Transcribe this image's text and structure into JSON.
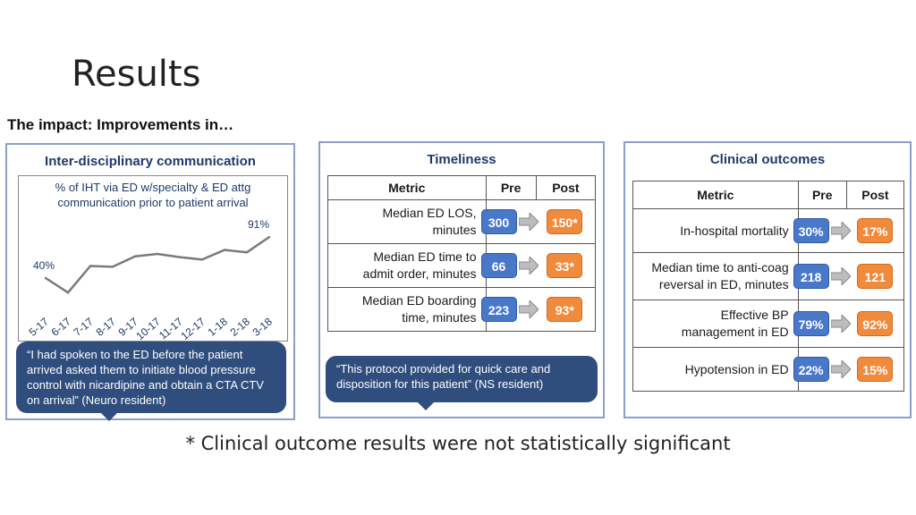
{
  "title": "Results",
  "subtitle": "The impact: Improvements in…",
  "communication": {
    "title": "Inter-disciplinary communication",
    "caption_line1": "% of IHT via ED w/specialty & ED attg",
    "caption_line2": "communication prior to patient arrival",
    "quote": "“I had spoken to the ED before the patient arrived asked them to initiate blood pressure control with nicardipine and obtain a CTA CTV on arrival” (Neuro resident)"
  },
  "chart_data": {
    "type": "line",
    "categories": [
      "5-17",
      "6-17",
      "7-17",
      "8-17",
      "9-17",
      "10-17",
      "11-17",
      "12-17",
      "1-18",
      "2-18",
      "3-18"
    ],
    "values": [
      40,
      22,
      55,
      54,
      67,
      70,
      66,
      63,
      75,
      72,
      91
    ],
    "data_labels": [
      {
        "index": 0,
        "text": "40%"
      },
      {
        "index": 10,
        "text": "91%"
      }
    ],
    "title": "% of IHT via ED w/specialty & ED attg communication prior to patient arrival",
    "xlabel": "",
    "ylabel": "",
    "ylim": [
      0,
      100
    ],
    "grid": false,
    "line_color": "#7a7a7a"
  },
  "timeliness": {
    "title": "Timeliness",
    "headers": {
      "metric": "Metric",
      "pre": "Pre",
      "post": "Post"
    },
    "rows": [
      {
        "metric_line1": "Median ED LOS,",
        "metric_line2": "minutes",
        "pre": "300",
        "post": "150*"
      },
      {
        "metric_line1": "Median ED time to",
        "metric_line2": "admit order, minutes",
        "pre": "66",
        "post": "33*"
      },
      {
        "metric_line1": "Median ED boarding",
        "metric_line2": "time, minutes",
        "pre": "223",
        "post": "93*"
      }
    ],
    "quote": "“This protocol provided for quick care and disposition for this patient” (NS resident)"
  },
  "clinical": {
    "title": "Clinical outcomes",
    "headers": {
      "metric": "Metric",
      "pre": "Pre",
      "post": "Post"
    },
    "rows": [
      {
        "metric_line1": "In-hospital mortality",
        "metric_line2": "",
        "pre": "30%",
        "post": "17%"
      },
      {
        "metric_line1": "Median time to anti-coag",
        "metric_line2": "reversal in ED, minutes",
        "pre": "218",
        "post": "121"
      },
      {
        "metric_line1": "Effective BP",
        "metric_line2": "management in ED",
        "pre": "79%",
        "post": "92%"
      },
      {
        "metric_line1": "Hypotension in ED",
        "metric_line2": "",
        "pre": "22%",
        "post": "15%"
      }
    ]
  },
  "footnote": "* Clinical outcome results were not statistically significant",
  "colors": {
    "pre": "#4a78c8",
    "post": "#f08a3c",
    "panel_border": "#8aa0c8",
    "bubble": "#2f4d7d",
    "title_blue": "#1f3a68"
  }
}
